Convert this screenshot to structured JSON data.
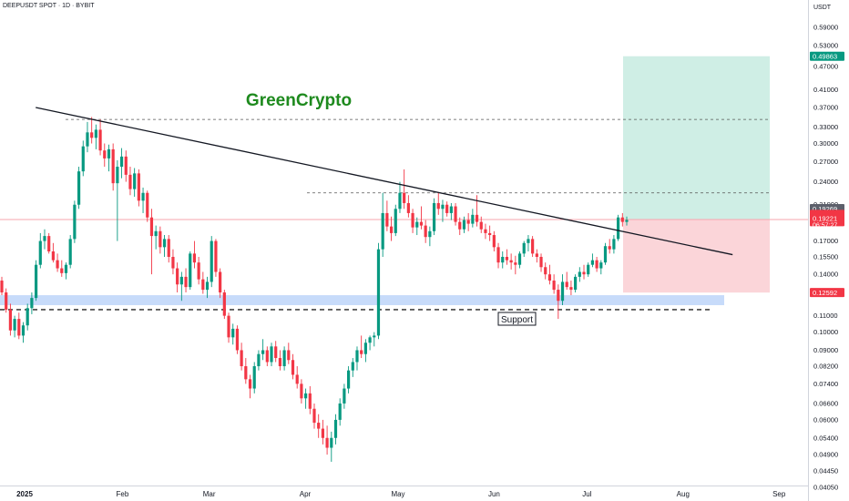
{
  "header": {
    "symbol": "DEEPUSDT SPOT · 1D · BYBIT"
  },
  "watermark": "GreenCrypto",
  "support_label": "Support",
  "axis": {
    "unit_label": "USDT",
    "y_ticks": [
      "0.59000",
      "0.53000",
      "0.47000",
      "0.41000",
      "0.37000",
      "0.33000",
      "0.30000",
      "0.27000",
      "0.24000",
      "0.21000",
      "0.17000",
      "0.15500",
      "0.14000",
      "0.12500",
      "0.11000",
      "0.10000",
      "0.09000",
      "0.08200",
      "0.07400",
      "0.06600",
      "0.06000",
      "0.05400",
      "0.04900",
      "0.04450",
      "0.04050"
    ],
    "x_ticks": [
      "2025",
      "Feb",
      "Mar",
      "Apr",
      "May",
      "Jun",
      "Jul",
      "Aug",
      "Sep"
    ]
  },
  "price_tags": {
    "target": "0.49863",
    "entry": "0.19269",
    "current_price": "0.19221",
    "countdown": "06:57:27",
    "stop": "0.12592"
  },
  "colors": {
    "up": "#089981",
    "down": "#f23645",
    "accent": "#1e8a1e",
    "target_zone": "#cfeee5",
    "stop_zone": "#fbd5d9",
    "support_zone": "#c7dbfa"
  },
  "chart_data": {
    "type": "candlestick",
    "y_scale": "log",
    "ylim": [
      0.0405,
      0.65
    ],
    "candles_ohlc": [
      [
        0.135,
        0.138,
        0.124,
        0.126
      ],
      [
        0.126,
        0.129,
        0.112,
        0.114
      ],
      [
        0.114,
        0.118,
        0.098,
        0.101
      ],
      [
        0.101,
        0.11,
        0.097,
        0.108
      ],
      [
        0.108,
        0.112,
        0.096,
        0.098
      ],
      [
        0.098,
        0.106,
        0.094,
        0.104
      ],
      [
        0.104,
        0.118,
        0.101,
        0.115
      ],
      [
        0.115,
        0.126,
        0.111,
        0.122
      ],
      [
        0.122,
        0.152,
        0.12,
        0.148
      ],
      [
        0.148,
        0.178,
        0.145,
        0.17
      ],
      [
        0.17,
        0.182,
        0.162,
        0.175
      ],
      [
        0.175,
        0.178,
        0.158,
        0.16
      ],
      [
        0.16,
        0.168,
        0.15,
        0.152
      ],
      [
        0.152,
        0.158,
        0.142,
        0.145
      ],
      [
        0.145,
        0.152,
        0.138,
        0.141
      ],
      [
        0.141,
        0.15,
        0.136,
        0.148
      ],
      [
        0.148,
        0.176,
        0.145,
        0.172
      ],
      [
        0.172,
        0.215,
        0.168,
        0.21
      ],
      [
        0.21,
        0.262,
        0.205,
        0.255
      ],
      [
        0.255,
        0.305,
        0.248,
        0.295
      ],
      [
        0.295,
        0.34,
        0.285,
        0.32
      ],
      [
        0.32,
        0.35,
        0.3,
        0.31
      ],
      [
        0.31,
        0.335,
        0.29,
        0.325
      ],
      [
        0.325,
        0.345,
        0.28,
        0.288
      ],
      [
        0.288,
        0.3,
        0.262,
        0.275
      ],
      [
        0.275,
        0.298,
        0.255,
        0.29
      ],
      [
        0.29,
        0.3,
        0.228,
        0.238
      ],
      [
        0.238,
        0.272,
        0.17,
        0.262
      ],
      [
        0.262,
        0.292,
        0.245,
        0.278
      ],
      [
        0.278,
        0.288,
        0.24,
        0.25
      ],
      [
        0.25,
        0.262,
        0.222,
        0.23
      ],
      [
        0.23,
        0.26,
        0.22,
        0.252
      ],
      [
        0.252,
        0.258,
        0.208,
        0.215
      ],
      [
        0.215,
        0.232,
        0.2,
        0.225
      ],
      [
        0.225,
        0.228,
        0.19,
        0.195
      ],
      [
        0.195,
        0.205,
        0.14,
        0.175
      ],
      [
        0.175,
        0.186,
        0.162,
        0.18
      ],
      [
        0.18,
        0.185,
        0.158,
        0.164
      ],
      [
        0.164,
        0.176,
        0.155,
        0.172
      ],
      [
        0.172,
        0.176,
        0.15,
        0.155
      ],
      [
        0.155,
        0.162,
        0.14,
        0.145
      ],
      [
        0.145,
        0.15,
        0.126,
        0.132
      ],
      [
        0.132,
        0.142,
        0.12,
        0.138
      ],
      [
        0.138,
        0.145,
        0.126,
        0.13
      ],
      [
        0.13,
        0.16,
        0.128,
        0.158
      ],
      [
        0.158,
        0.17,
        0.145,
        0.15
      ],
      [
        0.15,
        0.155,
        0.132,
        0.136
      ],
      [
        0.136,
        0.142,
        0.125,
        0.128
      ],
      [
        0.128,
        0.138,
        0.122,
        0.134
      ],
      [
        0.134,
        0.175,
        0.13,
        0.17
      ],
      [
        0.17,
        0.172,
        0.138,
        0.142
      ],
      [
        0.142,
        0.145,
        0.122,
        0.126
      ],
      [
        0.126,
        0.128,
        0.108,
        0.11
      ],
      [
        0.11,
        0.112,
        0.094,
        0.097
      ],
      [
        0.097,
        0.105,
        0.093,
        0.102
      ],
      [
        0.102,
        0.104,
        0.088,
        0.09
      ],
      [
        0.09,
        0.094,
        0.08,
        0.082
      ],
      [
        0.082,
        0.086,
        0.074,
        0.076
      ],
      [
        0.076,
        0.078,
        0.068,
        0.072
      ],
      [
        0.072,
        0.084,
        0.07,
        0.082
      ],
      [
        0.082,
        0.09,
        0.08,
        0.088
      ],
      [
        0.088,
        0.096,
        0.085,
        0.09
      ],
      [
        0.09,
        0.092,
        0.082,
        0.084
      ],
      [
        0.084,
        0.094,
        0.082,
        0.092
      ],
      [
        0.092,
        0.095,
        0.084,
        0.086
      ],
      [
        0.086,
        0.09,
        0.08,
        0.082
      ],
      [
        0.082,
        0.092,
        0.08,
        0.09
      ],
      [
        0.09,
        0.094,
        0.083,
        0.085
      ],
      [
        0.085,
        0.088,
        0.076,
        0.078
      ],
      [
        0.078,
        0.082,
        0.072,
        0.074
      ],
      [
        0.074,
        0.076,
        0.066,
        0.068
      ],
      [
        0.068,
        0.072,
        0.064,
        0.07
      ],
      [
        0.07,
        0.073,
        0.062,
        0.064
      ],
      [
        0.064,
        0.066,
        0.057,
        0.059
      ],
      [
        0.059,
        0.062,
        0.054,
        0.057
      ],
      [
        0.057,
        0.06,
        0.052,
        0.054
      ],
      [
        0.054,
        0.058,
        0.049,
        0.051
      ],
      [
        0.051,
        0.056,
        0.047,
        0.054
      ],
      [
        0.054,
        0.062,
        0.052,
        0.06
      ],
      [
        0.06,
        0.068,
        0.058,
        0.066
      ],
      [
        0.066,
        0.074,
        0.064,
        0.072
      ],
      [
        0.072,
        0.082,
        0.07,
        0.08
      ],
      [
        0.08,
        0.086,
        0.077,
        0.084
      ],
      [
        0.084,
        0.092,
        0.08,
        0.09
      ],
      [
        0.09,
        0.098,
        0.086,
        0.088
      ],
      [
        0.088,
        0.096,
        0.084,
        0.094
      ],
      [
        0.094,
        0.098,
        0.09,
        0.097
      ],
      [
        0.097,
        0.1,
        0.092,
        0.098
      ],
      [
        0.098,
        0.168,
        0.096,
        0.162
      ],
      [
        0.162,
        0.225,
        0.155,
        0.2
      ],
      [
        0.2,
        0.215,
        0.18,
        0.185
      ],
      [
        0.185,
        0.196,
        0.17,
        0.178
      ],
      [
        0.178,
        0.21,
        0.175,
        0.205
      ],
      [
        0.205,
        0.24,
        0.2,
        0.225
      ],
      [
        0.225,
        0.258,
        0.205,
        0.212
      ],
      [
        0.212,
        0.222,
        0.195,
        0.2
      ],
      [
        0.2,
        0.205,
        0.178,
        0.184
      ],
      [
        0.184,
        0.195,
        0.176,
        0.19
      ],
      [
        0.19,
        0.208,
        0.182,
        0.186
      ],
      [
        0.186,
        0.192,
        0.168,
        0.174
      ],
      [
        0.174,
        0.185,
        0.165,
        0.18
      ],
      [
        0.18,
        0.218,
        0.176,
        0.212
      ],
      [
        0.212,
        0.225,
        0.198,
        0.205
      ],
      [
        0.205,
        0.216,
        0.19,
        0.21
      ],
      [
        0.21,
        0.214,
        0.196,
        0.2
      ],
      [
        0.2,
        0.212,
        0.192,
        0.208
      ],
      [
        0.208,
        0.212,
        0.186,
        0.19
      ],
      [
        0.19,
        0.195,
        0.176,
        0.182
      ],
      [
        0.182,
        0.196,
        0.178,
        0.192
      ],
      [
        0.192,
        0.2,
        0.18,
        0.188
      ],
      [
        0.188,
        0.205,
        0.184,
        0.198
      ],
      [
        0.198,
        0.222,
        0.185,
        0.19
      ],
      [
        0.19,
        0.196,
        0.178,
        0.182
      ],
      [
        0.182,
        0.188,
        0.172,
        0.178
      ],
      [
        0.178,
        0.186,
        0.17,
        0.176
      ],
      [
        0.176,
        0.18,
        0.16,
        0.164
      ],
      [
        0.164,
        0.168,
        0.145,
        0.15
      ],
      [
        0.15,
        0.16,
        0.145,
        0.155
      ],
      [
        0.155,
        0.162,
        0.148,
        0.152
      ],
      [
        0.152,
        0.158,
        0.144,
        0.15
      ],
      [
        0.15,
        0.156,
        0.14,
        0.148
      ],
      [
        0.148,
        0.16,
        0.145,
        0.158
      ],
      [
        0.158,
        0.17,
        0.155,
        0.168
      ],
      [
        0.168,
        0.176,
        0.16,
        0.172
      ],
      [
        0.172,
        0.175,
        0.155,
        0.158
      ],
      [
        0.158,
        0.162,
        0.15,
        0.155
      ],
      [
        0.155,
        0.158,
        0.142,
        0.146
      ],
      [
        0.146,
        0.15,
        0.136,
        0.14
      ],
      [
        0.14,
        0.148,
        0.132,
        0.135
      ],
      [
        0.135,
        0.14,
        0.125,
        0.128
      ],
      [
        0.128,
        0.132,
        0.108,
        0.12
      ],
      [
        0.12,
        0.14,
        0.117,
        0.134
      ],
      [
        0.134,
        0.142,
        0.128,
        0.13
      ],
      [
        0.13,
        0.135,
        0.124,
        0.128
      ],
      [
        0.128,
        0.14,
        0.126,
        0.138
      ],
      [
        0.138,
        0.146,
        0.134,
        0.142
      ],
      [
        0.142,
        0.148,
        0.136,
        0.14
      ],
      [
        0.14,
        0.15,
        0.138,
        0.148
      ],
      [
        0.148,
        0.158,
        0.146,
        0.152
      ],
      [
        0.152,
        0.155,
        0.142,
        0.145
      ],
      [
        0.145,
        0.152,
        0.14,
        0.15
      ],
      [
        0.15,
        0.168,
        0.148,
        0.165
      ],
      [
        0.165,
        0.172,
        0.158,
        0.162
      ],
      [
        0.162,
        0.176,
        0.158,
        0.172
      ],
      [
        0.172,
        0.198,
        0.17,
        0.195
      ],
      [
        0.195,
        0.2,
        0.185,
        0.19
      ],
      [
        0.19,
        0.196,
        0.186,
        0.1922
      ]
    ],
    "resistance_levels": [
      0.345,
      0.225
    ],
    "support_level": 0.114,
    "support_zone": [
      0.117,
      0.124
    ],
    "trendline": {
      "from": [
        "2025-01-04",
        0.37
      ],
      "to": [
        "2025-08-17",
        0.157
      ]
    },
    "trade": {
      "entry": 0.19269,
      "target": 0.49863,
      "stop": 0.12592
    }
  }
}
